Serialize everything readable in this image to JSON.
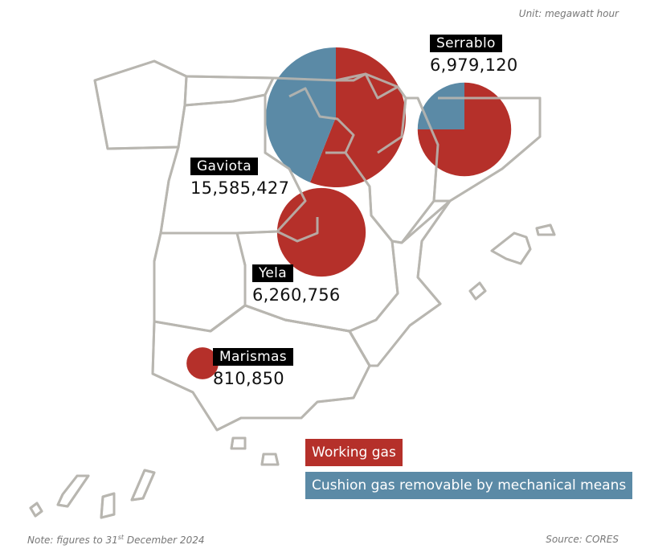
{
  "unit_note": "Unit: megawatt hour",
  "footnote_prefix": "Note: figures to 31",
  "footnote_sup": "st",
  "footnote_suffix": " December 2024",
  "source_note": "Source: CORES",
  "colors": {
    "working_gas": "#b5302a",
    "cushion_gas": "#5b8aa6",
    "map_stroke": "#b8b6b0"
  },
  "legend": [
    {
      "label": "Working gas",
      "color": "#b5302a"
    },
    {
      "label": "Cushion gas removable by mechanical means",
      "color": "#5b8aa6"
    }
  ],
  "chart_data": {
    "type": "pie",
    "unit": "megawatt hour",
    "sites": [
      {
        "name": "Gaviota",
        "total": "15,585,427",
        "total_value": 15585427,
        "working_gas_share": 0.56,
        "cushion_gas_share": 0.44
      },
      {
        "name": "Serrablo",
        "total": "6,979,120",
        "total_value": 6979120,
        "working_gas_share": 0.75,
        "cushion_gas_share": 0.25
      },
      {
        "name": "Yela",
        "total": "6,260,756",
        "total_value": 6260756,
        "working_gas_share": 1.0,
        "cushion_gas_share": 0.0
      },
      {
        "name": "Marismas",
        "total": "810,850",
        "total_value": 810850,
        "working_gas_share": 1.0,
        "cushion_gas_share": 0.0
      }
    ]
  }
}
